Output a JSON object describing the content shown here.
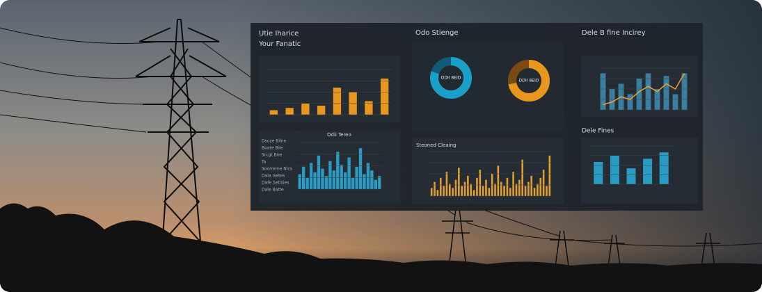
{
  "left": {
    "title": "Utie Iharice",
    "subtitle": "Your Fanatic",
    "chart": {
      "values": [
        2,
        3,
        5,
        4,
        12,
        10,
        6,
        16
      ]
    },
    "lower": {
      "title": "Odii Tereo",
      "items": [
        "Dsuze Bilne",
        "Boate Bile",
        "Srcgt Bne",
        "Ta",
        "Soorrerne Nlcs",
        "Dala Isetes",
        "Dafe Setisies",
        "Dale Batte"
      ],
      "values": [
        8,
        12,
        6,
        14,
        9,
        18,
        11,
        7,
        15,
        10,
        20,
        13,
        9,
        17,
        6,
        12,
        22,
        8,
        14,
        10,
        5,
        7
      ]
    }
  },
  "middle": {
    "title": "Odo Stienge",
    "donuts": [
      {
        "label": "ODII 8EID",
        "share": 80
      },
      {
        "label": "DDII 8EID",
        "share": 72
      }
    ],
    "lower": {
      "title": "Steoned Cleaing",
      "values": [
        4,
        7,
        3,
        9,
        5,
        12,
        6,
        4,
        8,
        14,
        5,
        7,
        10,
        6,
        3,
        9,
        13,
        5,
        8,
        4,
        11,
        6,
        15,
        7,
        5,
        9,
        4,
        12,
        6,
        8,
        18,
        5,
        7,
        10,
        4,
        6,
        9,
        13,
        5,
        20
      ]
    }
  },
  "right": {
    "title": "Dele B fine Incirey",
    "chart": {
      "bars": [
        14,
        8,
        10,
        6,
        12,
        14,
        8,
        13,
        6,
        14
      ],
      "line": [
        2,
        3,
        5,
        4,
        7,
        9,
        7,
        10,
        8,
        14
      ]
    },
    "lower": {
      "title": "Dele Fines",
      "values": [
        7,
        9,
        5,
        8,
        10
      ]
    }
  }
}
